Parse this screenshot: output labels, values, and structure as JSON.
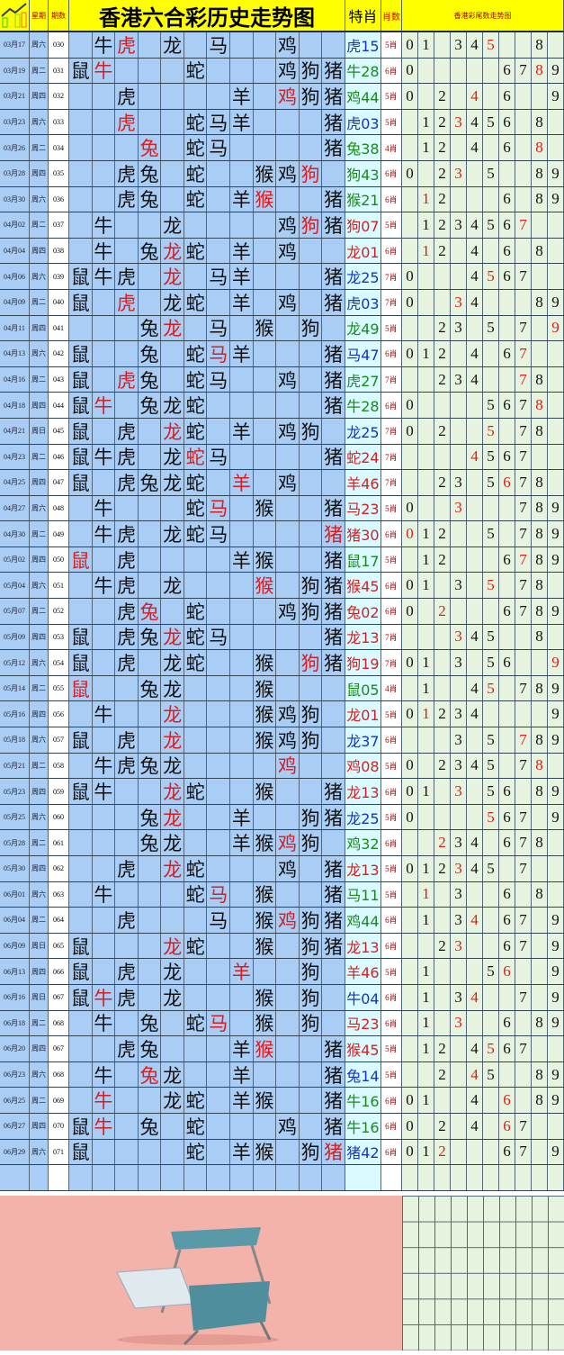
{
  "header": {
    "weekday_label": "星期",
    "issue_label": "期数",
    "title": "香港六合彩历史走势图",
    "special_label": "特肖",
    "count_label": "肖数",
    "tail_title": "香港彩尾数走势图"
  },
  "zodiacs": [
    "鼠",
    "牛",
    "虎",
    "兔",
    "龙",
    "蛇",
    "马",
    "羊",
    "猴",
    "鸡",
    "狗",
    "猪"
  ],
  "colors": {
    "red": "#d81e1e",
    "blue": "#1433c8",
    "green": "#1a8a1a",
    "header": "#ffff00",
    "zodiac_bg": "#a9cdf5",
    "tail_bg": "#e6f3de"
  },
  "rows": [
    {
      "date": "03月17",
      "wd": "周六",
      "no": "030",
      "z": "牛虎龙马鸡",
      "sp": "虎15",
      "c": "blue",
      "cnt": "5肖",
      "d": "013458"
    },
    {
      "date": "03月19",
      "wd": "周二",
      "no": "031",
      "z": "鼠牛蛇鸡狗猪",
      "sp": "牛28",
      "c": "green",
      "cnt": "6肖",
      "d": "06789"
    },
    {
      "date": "03月21",
      "wd": "周四",
      "no": "032",
      "z": "虎羊鸡狗猪",
      "sp": "鸡44",
      "c": "green",
      "cnt": "5肖",
      "d": "02469"
    },
    {
      "date": "03月23",
      "wd": "周六",
      "no": "033",
      "z": "虎蛇马羊猪",
      "sp": "虎03",
      "c": "blue",
      "cnt": "5肖",
      "d": "1234568"
    },
    {
      "date": "03月26",
      "wd": "周二",
      "no": "034",
      "z": "兔蛇马猪",
      "sp": "兔38",
      "c": "green",
      "cnt": "4肖",
      "d": "12468"
    },
    {
      "date": "03月28",
      "wd": "周四",
      "no": "035",
      "z": "虎兔蛇猴鸡狗",
      "sp": "狗43",
      "c": "green",
      "cnt": "6肖",
      "d": "023589"
    },
    {
      "date": "03月30",
      "wd": "周六",
      "no": "036",
      "z": "虎兔蛇羊猴猪",
      "sp": "猴21",
      "c": "green",
      "cnt": "6肖",
      "d": "12689"
    },
    {
      "date": "04月02",
      "wd": "周二",
      "no": "037",
      "z": "牛龙鸡狗猪",
      "sp": "狗07",
      "c": "red",
      "cnt": "5肖",
      "d": "1234567"
    },
    {
      "date": "04月04",
      "wd": "周四",
      "no": "038",
      "z": "牛兔龙蛇羊鸡",
      "sp": "龙01",
      "c": "red",
      "cnt": "6肖",
      "d": "12468"
    },
    {
      "date": "04月06",
      "wd": "周六",
      "no": "039",
      "z": "鼠牛虎龙马羊猪",
      "sp": "龙25",
      "c": "blue",
      "cnt": "7肖",
      "d": "04567"
    },
    {
      "date": "04月09",
      "wd": "周二",
      "no": "040",
      "z": "鼠虎龙蛇羊鸡猪",
      "sp": "虎03",
      "c": "blue",
      "cnt": "7肖",
      "d": "03489"
    },
    {
      "date": "04月11",
      "wd": "周四",
      "no": "041",
      "z": "兔龙马猴狗",
      "sp": "龙49",
      "c": "green",
      "cnt": "5肖",
      "d": "23579"
    },
    {
      "date": "04月13",
      "wd": "周六",
      "no": "042",
      "z": "鼠兔蛇马羊猪",
      "sp": "马47",
      "c": "blue",
      "cnt": "6肖",
      "d": "012467"
    },
    {
      "date": "04月16",
      "wd": "周二",
      "no": "043",
      "z": "鼠虎兔蛇马鸡猪",
      "sp": "虎27",
      "c": "green",
      "cnt": "7肖",
      "d": "23478"
    },
    {
      "date": "04月18",
      "wd": "周四",
      "no": "044",
      "z": "鼠牛兔龙蛇猪",
      "sp": "牛28",
      "c": "green",
      "cnt": "6肖",
      "d": "05678"
    },
    {
      "date": "04月21",
      "wd": "周日",
      "no": "045",
      "z": "鼠虎龙蛇羊鸡狗",
      "sp": "龙25",
      "c": "blue",
      "cnt": "7肖",
      "d": "02578"
    },
    {
      "date": "04月23",
      "wd": "周二",
      "no": "046",
      "z": "鼠牛虎龙蛇马猪",
      "sp": "蛇24",
      "c": "red",
      "cnt": "7肖",
      "d": "4567"
    },
    {
      "date": "04月25",
      "wd": "周四",
      "no": "047",
      "z": "鼠虎兔龙蛇羊鸡",
      "sp": "羊46",
      "c": "red",
      "cnt": "7肖",
      "d": "235678"
    },
    {
      "date": "04月27",
      "wd": "周六",
      "no": "048",
      "z": "牛蛇马猴猪",
      "sp": "马23",
      "c": "red",
      "cnt": "5肖",
      "d": "03789"
    },
    {
      "date": "04月30",
      "wd": "周二",
      "no": "049",
      "z": "牛虎龙蛇马猪",
      "sp": "猪30",
      "c": "red",
      "cnt": "6肖",
      "d": "0125789"
    },
    {
      "date": "05月02",
      "wd": "周四",
      "no": "050",
      "z": "鼠虎羊猴猪",
      "sp": "鼠17",
      "c": "green",
      "cnt": "5肖",
      "d": "126789"
    },
    {
      "date": "05月04",
      "wd": "周六",
      "no": "051",
      "z": "牛虎龙猴狗猪",
      "sp": "猴45",
      "c": "red",
      "cnt": "6肖",
      "d": "013578"
    },
    {
      "date": "05月07",
      "wd": "周二",
      "no": "052",
      "z": "虎兔蛇鸡狗猪",
      "sp": "兔02",
      "c": "red",
      "cnt": "6肖",
      "d": "026789"
    },
    {
      "date": "05月09",
      "wd": "周四",
      "no": "053",
      "z": "鼠虎兔龙蛇马猪",
      "sp": "龙13",
      "c": "red",
      "cnt": "7肖",
      "d": "3458"
    },
    {
      "date": "05月12",
      "wd": "周六",
      "no": "054",
      "z": "鼠虎龙蛇猴狗猪",
      "sp": "狗19",
      "c": "red",
      "cnt": "7肖",
      "d": "013569"
    },
    {
      "date": "05月14",
      "wd": "周二",
      "no": "055",
      "z": "鼠兔龙猴",
      "sp": "鼠05",
      "c": "green",
      "cnt": "4肖",
      "d": "145789"
    },
    {
      "date": "05月16",
      "wd": "周四",
      "no": "056",
      "z": "牛龙猴鸡狗",
      "sp": "龙01",
      "c": "red",
      "cnt": "5肖",
      "d": "012349"
    },
    {
      "date": "05月18",
      "wd": "周六",
      "no": "057",
      "z": "鼠虎龙猴鸡狗",
      "sp": "龙37",
      "c": "blue",
      "cnt": "6肖",
      "d": "35789"
    },
    {
      "date": "05月21",
      "wd": "周二",
      "no": "058",
      "z": "牛虎兔龙鸡",
      "sp": "鸡08",
      "c": "red",
      "cnt": "5肖",
      "d": "0234578"
    },
    {
      "date": "05月23",
      "wd": "周四",
      "no": "059",
      "z": "鼠牛龙蛇猴猪",
      "sp": "龙13",
      "c": "red",
      "cnt": "6肖",
      "d": "0135689"
    },
    {
      "date": "05月25",
      "wd": "周六",
      "no": "060",
      "z": "兔龙羊狗猪",
      "sp": "龙25",
      "c": "blue",
      "cnt": "5肖",
      "d": "05679"
    },
    {
      "date": "05月28",
      "wd": "周二",
      "no": "061",
      "z": "兔龙羊猴鸡狗",
      "sp": "鸡32",
      "c": "green",
      "cnt": "6肖",
      "d": "234678"
    },
    {
      "date": "05月30",
      "wd": "周四",
      "no": "062",
      "z": "虎龙蛇鸡猪",
      "sp": "龙13",
      "c": "red",
      "cnt": "5肖",
      "d": "0123457"
    },
    {
      "date": "06月01",
      "wd": "周六",
      "no": "063",
      "z": "牛蛇马猴猪",
      "sp": "马11",
      "c": "green",
      "cnt": "5肖",
      "d": "1368"
    },
    {
      "date": "06月04",
      "wd": "周二",
      "no": "064",
      "z": "虎马猴鸡狗猪",
      "sp": "鸡44",
      "c": "green",
      "cnt": "6肖",
      "d": "134679"
    },
    {
      "date": "06月09",
      "wd": "周日",
      "no": "065",
      "z": "鼠龙蛇猴狗猪",
      "sp": "龙13",
      "c": "red",
      "cnt": "6肖",
      "d": "23679"
    },
    {
      "date": "06月13",
      "wd": "周四",
      "no": "066",
      "z": "鼠虎龙羊狗",
      "sp": "羊46",
      "c": "red",
      "cnt": "5肖",
      "d": "1569"
    },
    {
      "date": "06月16",
      "wd": "周日",
      "no": "067",
      "z": "鼠牛虎龙猴狗",
      "sp": "牛04",
      "c": "blue",
      "cnt": "6肖",
      "d": "13479"
    },
    {
      "date": "06月18",
      "wd": "周二",
      "no": "068",
      "z": "牛兔蛇马猴狗",
      "sp": "马23",
      "c": "red",
      "cnt": "6肖",
      "d": "13689"
    },
    {
      "date": "06月20",
      "wd": "周四",
      "no": "067",
      "z": "虎兔羊猴猪",
      "sp": "猴45",
      "c": "red",
      "cnt": "5肖",
      "d": "124567"
    },
    {
      "date": "06月23",
      "wd": "周六",
      "no": "068",
      "z": "牛兔龙羊猪",
      "sp": "兔14",
      "c": "blue",
      "cnt": "5肖",
      "d": "24589"
    },
    {
      "date": "06月25",
      "wd": "周二",
      "no": "069",
      "z": "牛龙蛇羊猴猪",
      "sp": "牛16",
      "c": "green",
      "cnt": "6肖",
      "d": "014689"
    },
    {
      "date": "06月27",
      "wd": "周四",
      "no": "070",
      "z": "鼠牛兔蛇鸡猪",
      "sp": "牛16",
      "c": "green",
      "cnt": "6肖",
      "d": "02467"
    },
    {
      "date": "06月29",
      "wd": "周六",
      "no": "071",
      "z": "鼠蛇羊猴狗猪",
      "sp": "猪42",
      "c": "blue",
      "cnt": "6肖",
      "d": "012679"
    }
  ]
}
